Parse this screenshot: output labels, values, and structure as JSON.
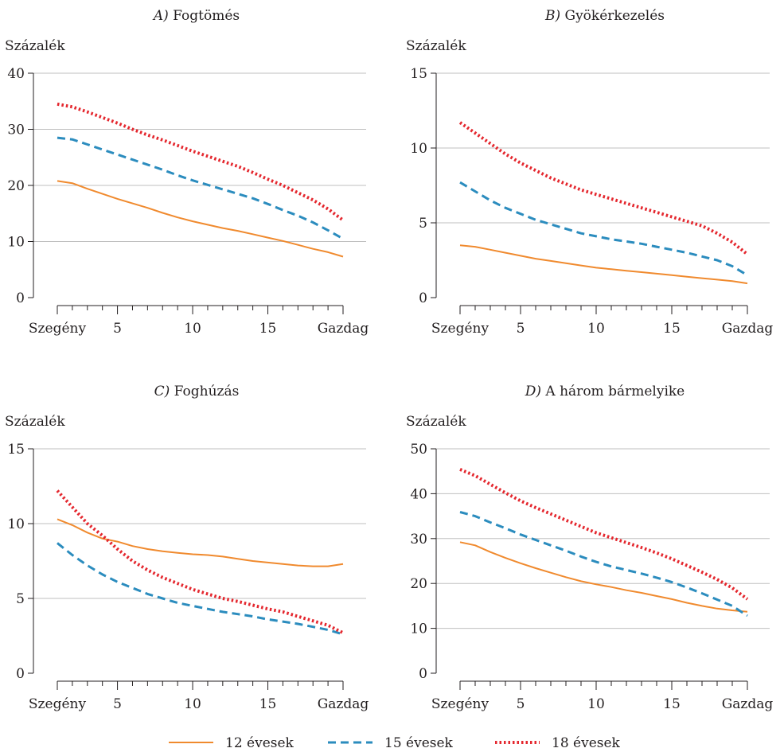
{
  "colors": {
    "series_12": "#f08a2e",
    "series_15": "#2b8cbe",
    "series_18": "#e4272e",
    "grid": "#bfbfbf",
    "axis": "#231f20"
  },
  "legend": {
    "items": [
      {
        "label": "12 évesek",
        "style": "solid",
        "color": "#f08a2e"
      },
      {
        "label": "15 évesek",
        "style": "dashed",
        "color": "#2b8cbe"
      },
      {
        "label": "18 évesek",
        "style": "dotted",
        "color": "#e4272e"
      }
    ]
  },
  "chart_data": [
    {
      "type": "line",
      "title_letter": "A)",
      "title_text": "Fogtömés",
      "ylabel": "Százalék",
      "ylim": [
        0,
        40
      ],
      "yticks": [
        0,
        10,
        20,
        30,
        40
      ],
      "xlim": [
        1,
        20
      ],
      "xticks": [
        1,
        5,
        10,
        15,
        20
      ],
      "xtick_labels": [
        "Szegény",
        "5",
        "10",
        "15",
        "Gazdag"
      ],
      "grid": true,
      "x": [
        1,
        2,
        3,
        4,
        5,
        6,
        7,
        8,
        9,
        10,
        11,
        12,
        13,
        14,
        15,
        16,
        17,
        18,
        19,
        20
      ],
      "series": [
        {
          "name": "12 évesek",
          "style": "solid",
          "values": [
            20.8,
            20.4,
            19.4,
            18.5,
            17.6,
            16.8,
            16.0,
            15.1,
            14.3,
            13.6,
            13.0,
            12.4,
            11.9,
            11.3,
            10.7,
            10.1,
            9.4,
            8.7,
            8.1,
            7.3
          ]
        },
        {
          "name": "15 évesek",
          "style": "dashed",
          "values": [
            28.5,
            28.2,
            27.3,
            26.4,
            25.5,
            24.6,
            23.7,
            22.8,
            21.8,
            20.9,
            20.1,
            19.3,
            18.5,
            17.7,
            16.7,
            15.6,
            14.6,
            13.4,
            12.0,
            10.5
          ]
        },
        {
          "name": "18 évesek",
          "style": "dotted",
          "values": [
            34.5,
            34.0,
            33.1,
            32.1,
            31.1,
            30.0,
            29.0,
            28.1,
            27.1,
            26.1,
            25.2,
            24.3,
            23.4,
            22.3,
            21.1,
            20.0,
            18.7,
            17.4,
            15.8,
            13.8
          ]
        }
      ]
    },
    {
      "type": "line",
      "title_letter": "B)",
      "title_text": "Gyökérkezelés",
      "ylabel": "Százalék",
      "ylim": [
        0,
        15
      ],
      "yticks": [
        0,
        5,
        10,
        15
      ],
      "xlim": [
        1,
        20
      ],
      "xticks": [
        1,
        5,
        10,
        15,
        20
      ],
      "xtick_labels": [
        "Szegény",
        "5",
        "10",
        "15",
        "Gazdag"
      ],
      "grid": true,
      "x": [
        1,
        2,
        3,
        4,
        5,
        6,
        7,
        8,
        9,
        10,
        11,
        12,
        13,
        14,
        15,
        16,
        17,
        18,
        19,
        20
      ],
      "series": [
        {
          "name": "12 évesek",
          "style": "solid",
          "values": [
            3.5,
            3.4,
            3.2,
            3.0,
            2.8,
            2.6,
            2.45,
            2.3,
            2.15,
            2.0,
            1.9,
            1.8,
            1.7,
            1.6,
            1.5,
            1.4,
            1.3,
            1.2,
            1.1,
            0.95
          ]
        },
        {
          "name": "15 évesek",
          "style": "dashed",
          "values": [
            7.7,
            7.1,
            6.5,
            6.0,
            5.6,
            5.2,
            4.9,
            4.6,
            4.3,
            4.1,
            3.9,
            3.75,
            3.6,
            3.4,
            3.2,
            3.0,
            2.75,
            2.5,
            2.1,
            1.5
          ]
        },
        {
          "name": "18 évesek",
          "style": "dotted",
          "values": [
            11.7,
            11.0,
            10.3,
            9.6,
            9.0,
            8.5,
            8.0,
            7.6,
            7.2,
            6.9,
            6.6,
            6.3,
            6.0,
            5.7,
            5.4,
            5.1,
            4.8,
            4.3,
            3.7,
            2.9
          ]
        }
      ]
    },
    {
      "type": "line",
      "title_letter": "C)",
      "title_text": "Foghúzás",
      "ylabel": "Százalék",
      "ylim": [
        0,
        15
      ],
      "yticks": [
        0,
        5,
        10,
        15
      ],
      "xlim": [
        1,
        20
      ],
      "xticks": [
        1,
        5,
        10,
        15,
        20
      ],
      "xtick_labels": [
        "Szegény",
        "5",
        "10",
        "15",
        "Gazdag"
      ],
      "grid": true,
      "x": [
        1,
        2,
        3,
        4,
        5,
        6,
        7,
        8,
        9,
        10,
        11,
        12,
        13,
        14,
        15,
        16,
        17,
        18,
        19,
        20
      ],
      "series": [
        {
          "name": "12 évesek",
          "style": "solid",
          "values": [
            10.3,
            9.9,
            9.4,
            9.0,
            8.8,
            8.5,
            8.3,
            8.15,
            8.05,
            7.95,
            7.9,
            7.8,
            7.65,
            7.5,
            7.4,
            7.3,
            7.2,
            7.15,
            7.15,
            7.3
          ]
        },
        {
          "name": "15 évesek",
          "style": "dashed",
          "values": [
            8.7,
            7.9,
            7.2,
            6.6,
            6.1,
            5.7,
            5.3,
            5.0,
            4.7,
            4.5,
            4.3,
            4.1,
            3.95,
            3.8,
            3.6,
            3.45,
            3.3,
            3.1,
            2.9,
            2.6
          ]
        },
        {
          "name": "18 évesek",
          "style": "dotted",
          "values": [
            12.2,
            11.1,
            10.0,
            9.2,
            8.3,
            7.5,
            6.9,
            6.4,
            6.0,
            5.6,
            5.3,
            5.0,
            4.8,
            4.55,
            4.3,
            4.1,
            3.8,
            3.5,
            3.2,
            2.7
          ]
        }
      ]
    },
    {
      "type": "line",
      "title_letter": "D)",
      "title_text": "A három bármelyike",
      "ylabel": "Százalék",
      "ylim": [
        0,
        50
      ],
      "yticks": [
        0,
        10,
        20,
        30,
        40,
        50
      ],
      "xlim": [
        1,
        20
      ],
      "xticks": [
        1,
        5,
        10,
        15,
        20
      ],
      "xtick_labels": [
        "Szegény",
        "5",
        "10",
        "15",
        "Gazdag"
      ],
      "grid": true,
      "x": [
        1,
        2,
        3,
        4,
        5,
        6,
        7,
        8,
        9,
        10,
        11,
        12,
        13,
        14,
        15,
        16,
        17,
        18,
        19,
        20
      ],
      "series": [
        {
          "name": "12 évesek",
          "style": "solid",
          "values": [
            29.2,
            28.5,
            27.0,
            25.7,
            24.5,
            23.4,
            22.4,
            21.4,
            20.5,
            19.8,
            19.2,
            18.5,
            17.9,
            17.2,
            16.5,
            15.7,
            15.0,
            14.4,
            14.0,
            13.7
          ]
        },
        {
          "name": "15 évesek",
          "style": "dashed",
          "values": [
            35.9,
            35.0,
            33.6,
            32.3,
            30.9,
            29.7,
            28.5,
            27.3,
            26.0,
            24.8,
            23.8,
            23.0,
            22.2,
            21.3,
            20.3,
            19.1,
            17.8,
            16.4,
            15.0,
            12.8
          ]
        },
        {
          "name": "18 évesek",
          "style": "dotted",
          "values": [
            45.4,
            44.0,
            42.1,
            40.2,
            38.4,
            36.9,
            35.5,
            34.1,
            32.7,
            31.3,
            30.2,
            29.1,
            28.0,
            26.8,
            25.5,
            24.0,
            22.5,
            20.9,
            19.0,
            16.5
          ]
        }
      ]
    }
  ]
}
